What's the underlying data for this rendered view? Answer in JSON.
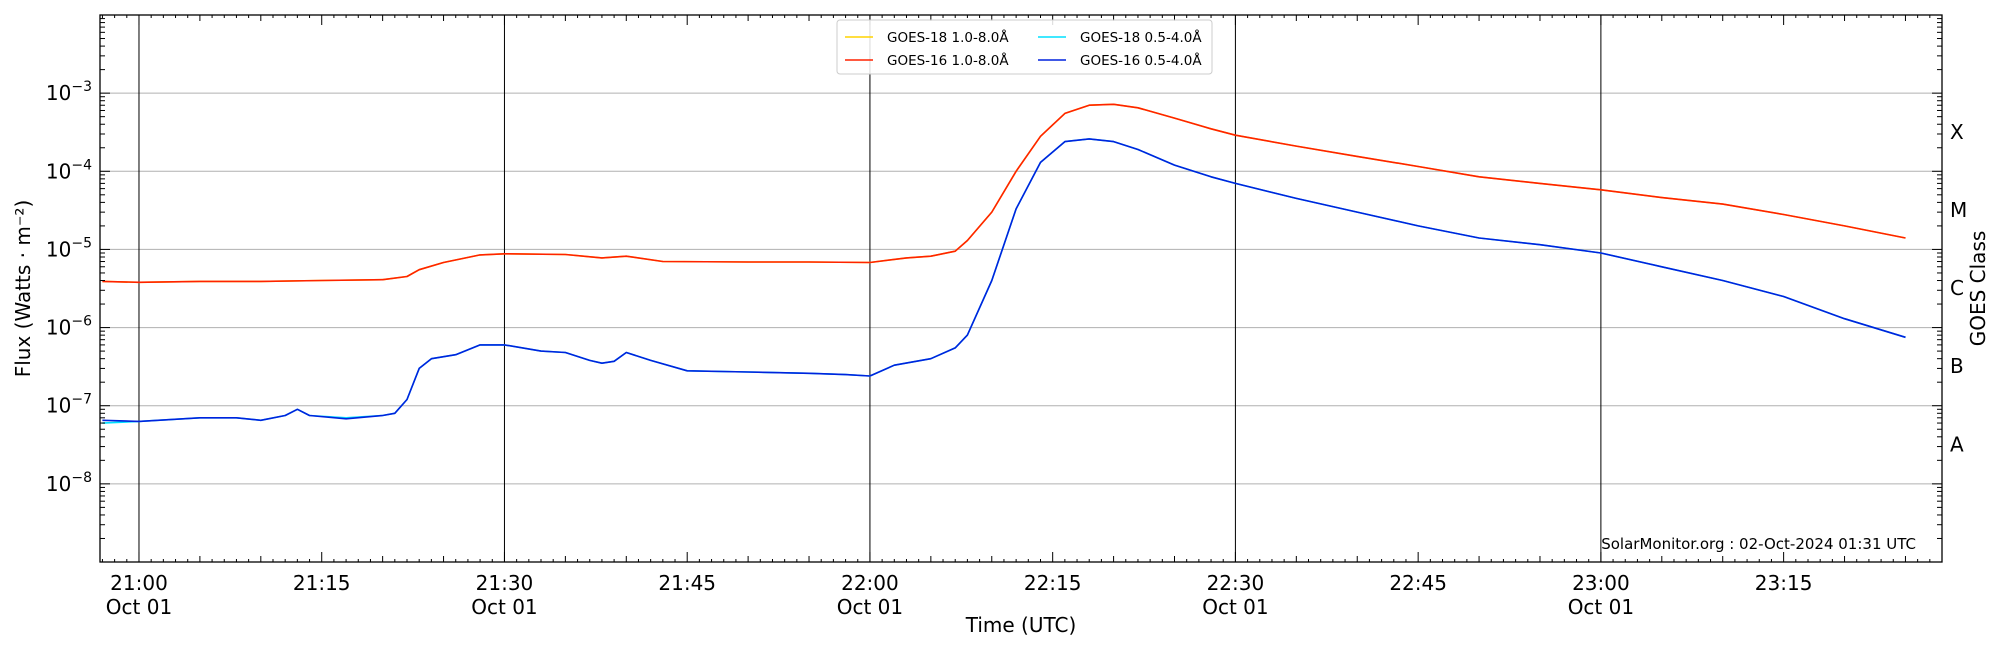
{
  "chart_data": {
    "type": "line",
    "xlabel": "Time (UTC)",
    "ylabel": "Flux (Watts · m⁻²)",
    "ylabel_right": "GOES Class",
    "x_unit": "minutes after 21:00 UTC, Oct 01 2024",
    "xlim": [
      -3.2,
      148
    ],
    "yscale": "log",
    "ylim": [
      1e-09,
      0.01
    ],
    "x_ticks": [
      {
        "x": 0,
        "label": "21:00",
        "sublabel": "Oct 01"
      },
      {
        "x": 15,
        "label": "21:15",
        "sublabel": ""
      },
      {
        "x": 30,
        "label": "21:30",
        "sublabel": "Oct 01"
      },
      {
        "x": 45,
        "label": "21:45",
        "sublabel": ""
      },
      {
        "x": 60,
        "label": "22:00",
        "sublabel": "Oct 01"
      },
      {
        "x": 75,
        "label": "22:15",
        "sublabel": ""
      },
      {
        "x": 90,
        "label": "22:30",
        "sublabel": "Oct 01"
      },
      {
        "x": 105,
        "label": "22:45",
        "sublabel": ""
      },
      {
        "x": 120,
        "label": "23:00",
        "sublabel": "Oct 01"
      },
      {
        "x": 135,
        "label": "23:15",
        "sublabel": ""
      }
    ],
    "day_lines": [
      0,
      30,
      60,
      90,
      120
    ],
    "y_ticks": [
      {
        "y": 1e-08,
        "base": "10",
        "exp": "−8"
      },
      {
        "y": 1e-07,
        "base": "10",
        "exp": "−7"
      },
      {
        "y": 1e-06,
        "base": "10",
        "exp": "−6"
      },
      {
        "y": 1e-05,
        "base": "10",
        "exp": "−5"
      },
      {
        "y": 0.0001,
        "base": "10",
        "exp": "−4"
      },
      {
        "y": 0.001,
        "base": "10",
        "exp": "−3"
      }
    ],
    "goes_classes": [
      {
        "label": "A",
        "y": 3.2e-08
      },
      {
        "label": "B",
        "y": 3.2e-07
      },
      {
        "label": "C",
        "y": 3.2e-06
      },
      {
        "label": "M",
        "y": 3.2e-05
      },
      {
        "label": "X",
        "y": 0.00032
      }
    ],
    "gridlines_y": [
      1e-08,
      1e-07,
      1e-06,
      1e-05,
      0.0001,
      0.001
    ],
    "legend": {
      "position": "top-center"
    },
    "credit": "SolarMonitor.org : 02-Oct-2024 01:31 UTC",
    "series": [
      {
        "name": "GOES-18 1.0-8.0Å",
        "color": "#ffd400",
        "x": [
          -3,
          0,
          5,
          10,
          15,
          20,
          22,
          23,
          25,
          28,
          30,
          35,
          38,
          40,
          43,
          50,
          55,
          60,
          63,
          65,
          67,
          68,
          70,
          72,
          74,
          76,
          78,
          80,
          82,
          85,
          88,
          90,
          95,
          100,
          105,
          110,
          115,
          120,
          125,
          130,
          135,
          140,
          145
        ],
        "values": [
          3.9e-06,
          3.8e-06,
          3.9e-06,
          3.9e-06,
          4e-06,
          4.1e-06,
          4.5e-06,
          5.5e-06,
          6.8e-06,
          8.5e-06,
          8.8e-06,
          8.6e-06,
          7.8e-06,
          8.2e-06,
          7e-06,
          6.9e-06,
          6.9e-06,
          6.8e-06,
          7.8e-06,
          8.2e-06,
          9.5e-06,
          1.3e-05,
          3e-05,
          0.0001,
          0.00028,
          0.00055,
          0.0007,
          0.00072,
          0.00065,
          0.00048,
          0.00035,
          0.00029,
          0.00021,
          0.000155,
          0.000115,
          8.5e-05,
          7e-05,
          5.8e-05,
          4.6e-05,
          3.8e-05,
          2.8e-05,
          2e-05,
          1.4e-05
        ]
      },
      {
        "name": "GOES-16 1.0-8.0Å",
        "color": "#ff2200",
        "x": [
          -3,
          0,
          5,
          10,
          15,
          20,
          22,
          23,
          25,
          28,
          30,
          35,
          38,
          40,
          43,
          50,
          55,
          60,
          63,
          65,
          67,
          68,
          70,
          72,
          74,
          76,
          78,
          80,
          82,
          85,
          88,
          90,
          95,
          100,
          105,
          110,
          115,
          120,
          125,
          130,
          135,
          140,
          145
        ],
        "values": [
          3.9e-06,
          3.8e-06,
          3.9e-06,
          3.9e-06,
          4e-06,
          4.1e-06,
          4.5e-06,
          5.5e-06,
          6.8e-06,
          8.5e-06,
          8.8e-06,
          8.6e-06,
          7.8e-06,
          8.2e-06,
          7e-06,
          6.9e-06,
          6.9e-06,
          6.8e-06,
          7.8e-06,
          8.2e-06,
          9.5e-06,
          1.3e-05,
          3e-05,
          0.0001,
          0.00028,
          0.00055,
          0.0007,
          0.00072,
          0.00065,
          0.00048,
          0.00035,
          0.00029,
          0.00021,
          0.000155,
          0.000115,
          8.5e-05,
          7e-05,
          5.8e-05,
          4.6e-05,
          3.8e-05,
          2.8e-05,
          2e-05,
          1.4e-05
        ]
      },
      {
        "name": "GOES-18 0.5-4.0Å",
        "color": "#00e0ff",
        "x": [
          -3,
          0,
          5,
          8,
          10,
          12,
          13,
          14,
          17,
          20,
          21,
          22,
          23,
          24,
          26,
          28,
          30,
          33,
          35,
          37,
          38,
          39,
          40,
          42,
          45,
          50,
          55,
          58,
          60,
          62,
          65,
          67,
          68,
          70,
          72,
          74,
          76,
          78,
          80,
          82,
          85,
          88,
          90,
          95,
          100,
          105,
          110,
          115,
          120,
          125,
          130,
          135,
          140,
          145
        ],
        "values": [
          6e-08,
          6.3e-08,
          7e-08,
          7e-08,
          6.5e-08,
          7.5e-08,
          9e-08,
          7.5e-08,
          7e-08,
          7.5e-08,
          8e-08,
          1.2e-07,
          3e-07,
          4e-07,
          4.5e-07,
          6e-07,
          6e-07,
          5e-07,
          4.8e-07,
          3.8e-07,
          3.5e-07,
          3.7e-07,
          4.8e-07,
          3.8e-07,
          2.8e-07,
          2.7e-07,
          2.6e-07,
          2.5e-07,
          2.4e-07,
          3.3e-07,
          4e-07,
          5.5e-07,
          8e-07,
          4e-06,
          3.3e-05,
          0.00013,
          0.00024,
          0.00026,
          0.00024,
          0.00019,
          0.00012,
          8.5e-05,
          7e-05,
          4.5e-05,
          3e-05,
          2e-05,
          1.4e-05,
          1.15e-05,
          9e-06,
          6e-06,
          4e-06,
          2.5e-06,
          1.3e-06,
          7.5e-07
        ]
      },
      {
        "name": "GOES-16 0.5-4.0Å",
        "color": "#0022dd",
        "x": [
          -3,
          0,
          5,
          8,
          10,
          12,
          13,
          14,
          17,
          20,
          21,
          22,
          23,
          24,
          26,
          28,
          30,
          33,
          35,
          37,
          38,
          39,
          40,
          42,
          45,
          50,
          55,
          58,
          60,
          62,
          65,
          67,
          68,
          70,
          72,
          74,
          76,
          78,
          80,
          82,
          85,
          88,
          90,
          95,
          100,
          105,
          110,
          115,
          120,
          125,
          130,
          135,
          140,
          145
        ],
        "values": [
          6.5e-08,
          6.3e-08,
          7e-08,
          7e-08,
          6.5e-08,
          7.5e-08,
          9e-08,
          7.5e-08,
          6.8e-08,
          7.5e-08,
          8e-08,
          1.2e-07,
          3e-07,
          4e-07,
          4.5e-07,
          6e-07,
          6e-07,
          5e-07,
          4.8e-07,
          3.8e-07,
          3.5e-07,
          3.7e-07,
          4.8e-07,
          3.8e-07,
          2.8e-07,
          2.7e-07,
          2.6e-07,
          2.5e-07,
          2.4e-07,
          3.3e-07,
          4e-07,
          5.5e-07,
          8e-07,
          4e-06,
          3.3e-05,
          0.00013,
          0.00024,
          0.00026,
          0.00024,
          0.00019,
          0.00012,
          8.5e-05,
          7e-05,
          4.5e-05,
          3e-05,
          2e-05,
          1.4e-05,
          1.15e-05,
          9e-06,
          6e-06,
          4e-06,
          2.5e-06,
          1.3e-06,
          7.5e-07
        ]
      }
    ]
  }
}
